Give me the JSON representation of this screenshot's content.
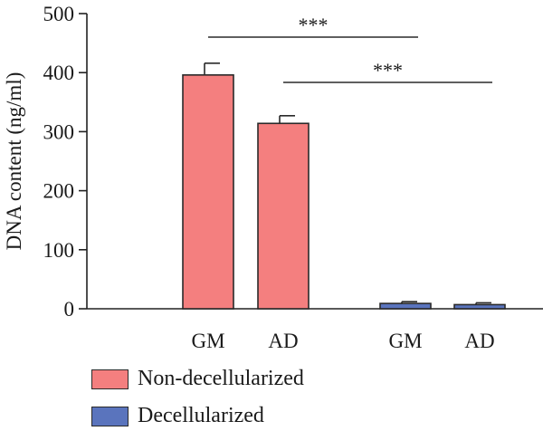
{
  "chart_data": {
    "type": "bar",
    "ylabel": "DNA content (ng/ml)",
    "ylim": [
      0,
      500
    ],
    "yticks": [
      0,
      100,
      200,
      300,
      400,
      500
    ],
    "categories": [
      "GM",
      "AD",
      "GM",
      "AD"
    ],
    "series": [
      {
        "name": "Non-decellularized",
        "color": "#f47f7f",
        "values": [
          396,
          314,
          null,
          null
        ],
        "errors": [
          20,
          13,
          null,
          null
        ]
      },
      {
        "name": "Decellularized",
        "color": "#5a74bd",
        "values": [
          null,
          null,
          9,
          7
        ],
        "errors": [
          null,
          null,
          3,
          3
        ]
      }
    ],
    "significance": [
      {
        "from": 0,
        "to": 2,
        "label": "***"
      },
      {
        "from": 1,
        "to": 3,
        "label": "***"
      }
    ],
    "legend_position": "bottom-left"
  }
}
